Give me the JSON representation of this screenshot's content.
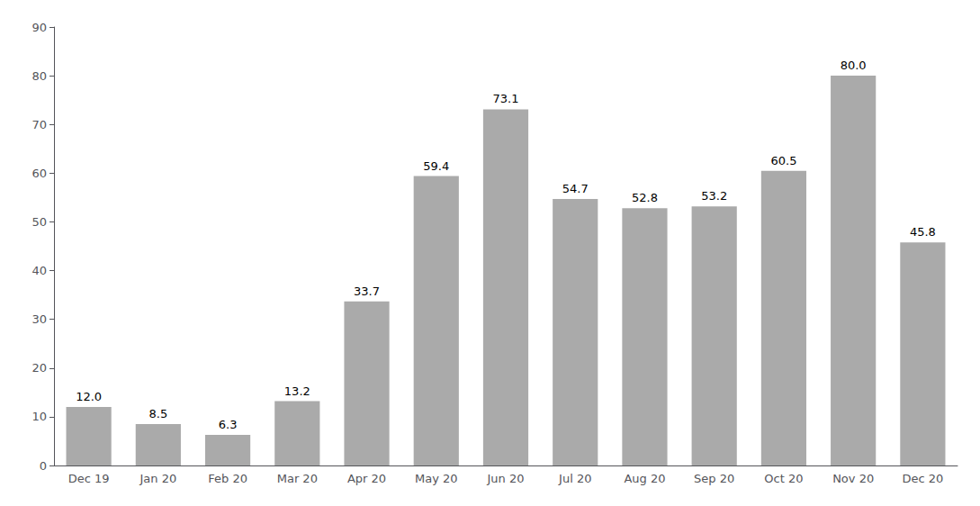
{
  "chart_data": {
    "type": "bar",
    "categories": [
      "Dec 19",
      "Jan 20",
      "Feb 20",
      "Mar 20",
      "Apr 20",
      "May 20",
      "Jun 20",
      "Jul 20",
      "Aug 20",
      "Sep 20",
      "Oct 20",
      "Nov 20",
      "Dec 20"
    ],
    "values": [
      12.0,
      8.5,
      6.3,
      13.2,
      33.7,
      59.4,
      73.1,
      54.7,
      52.8,
      53.2,
      60.5,
      80.0,
      45.8
    ],
    "value_labels": [
      "12.0",
      "8.5",
      "6.3",
      "13.2",
      "33.7",
      "59.4",
      "73.1",
      "54.7",
      "52.8",
      "53.2",
      "60.5",
      "80.0",
      "45.8"
    ],
    "color": "#aaaaaa",
    "ylim": [
      0,
      90
    ],
    "yticks": [
      0,
      10,
      20,
      30,
      40,
      50,
      60,
      70,
      80,
      90
    ],
    "grid": false,
    "data_labels": true
  }
}
